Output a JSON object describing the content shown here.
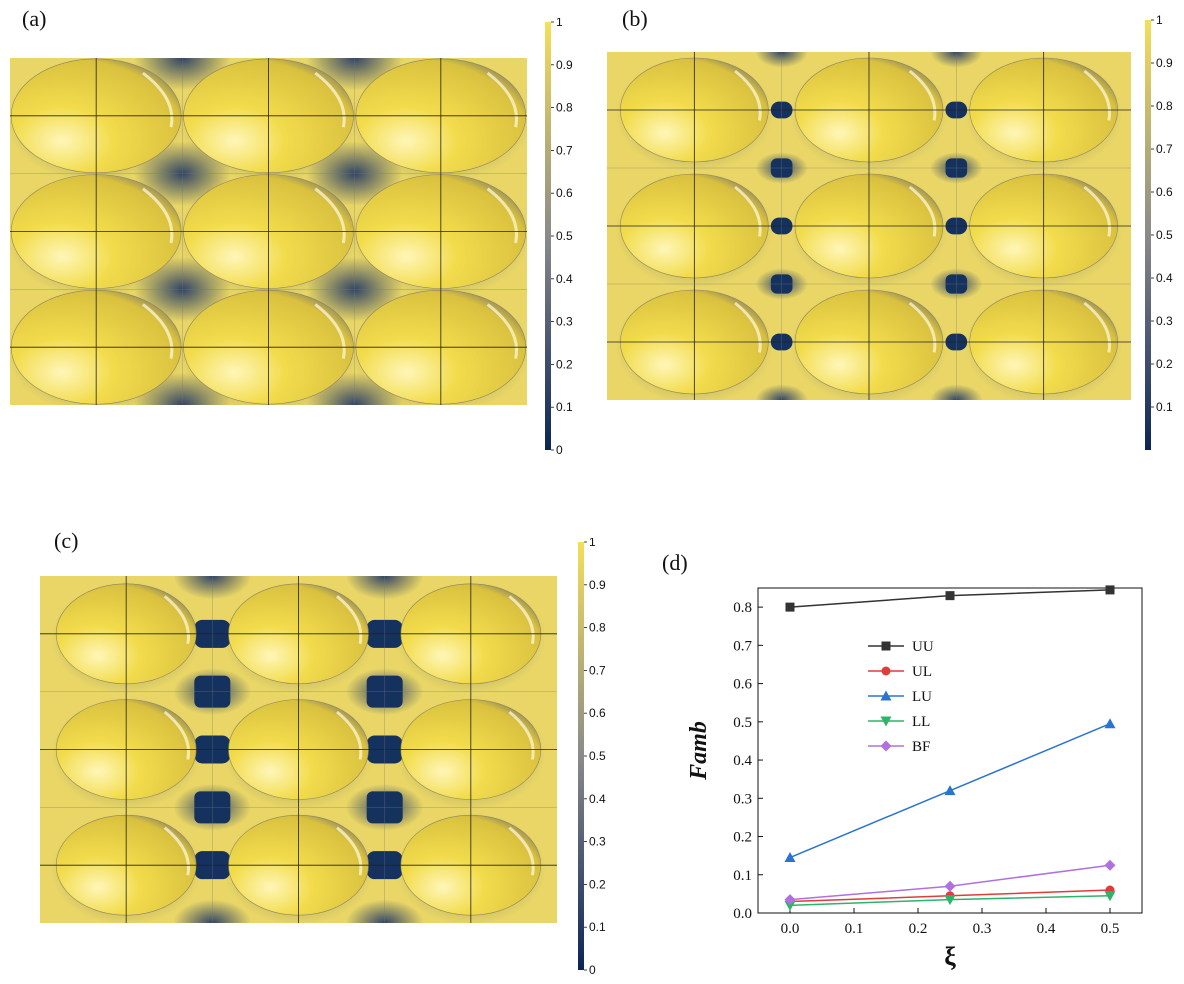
{
  "panels": {
    "a": {
      "label": "(a)",
      "pattern": "touching"
    },
    "b": {
      "label": "(b)",
      "pattern": "small-gaps"
    },
    "c": {
      "label": "(c)",
      "pattern": "large-gaps"
    },
    "d": {
      "label": "(d)"
    }
  },
  "colorbar": {
    "ticks": [
      "0",
      "0.1",
      "0.2",
      "0.3",
      "0.4",
      "0.5",
      "0.6",
      "0.7",
      "0.8",
      "0.9",
      "1"
    ],
    "ticks_b": [
      "0.1",
      "0.2",
      "0.3",
      "0.4",
      "0.5",
      "0.6",
      "0.7",
      "0.8",
      "0.9",
      "1"
    ],
    "color_low": "#0b2456",
    "color_mid": "#8a8a8a",
    "color_high": "#f4df5a"
  },
  "colors": {
    "sphere": "#f2dc4c",
    "sphere_highlight": "#fff6b8",
    "sphere_shadow": "#7d7a6a",
    "background_field": "#e9d666",
    "void": "#15315e"
  },
  "chart_data": {
    "type": "line",
    "title": "",
    "xlabel": "ξ",
    "ylabel": "Famb",
    "x": [
      0,
      0.25,
      0.5
    ],
    "xlim": [
      -0.05,
      0.55
    ],
    "ylim": [
      0,
      0.85
    ],
    "xticks": [
      "0.0",
      "0.1",
      "0.2",
      "0.3",
      "0.4",
      "0.5"
    ],
    "yticks": [
      "0.0",
      "0.1",
      "0.2",
      "0.3",
      "0.4",
      "0.5",
      "0.6",
      "0.7",
      "0.8"
    ],
    "legend_position": "upper-left-center",
    "series": [
      {
        "name": "UU",
        "color": "#333333",
        "marker": "square",
        "values": [
          0.8,
          0.83,
          0.845
        ]
      },
      {
        "name": "UL",
        "color": "#e03c3c",
        "marker": "circle",
        "values": [
          0.03,
          0.045,
          0.06
        ]
      },
      {
        "name": "LU",
        "color": "#2a74d0",
        "marker": "triangle-up",
        "values": [
          0.145,
          0.32,
          0.495
        ]
      },
      {
        "name": "LL",
        "color": "#2eb36a",
        "marker": "triangle-down",
        "values": [
          0.02,
          0.035,
          0.045
        ]
      },
      {
        "name": "BF",
        "color": "#b070e0",
        "marker": "diamond",
        "values": [
          0.035,
          0.07,
          0.125
        ]
      }
    ]
  }
}
